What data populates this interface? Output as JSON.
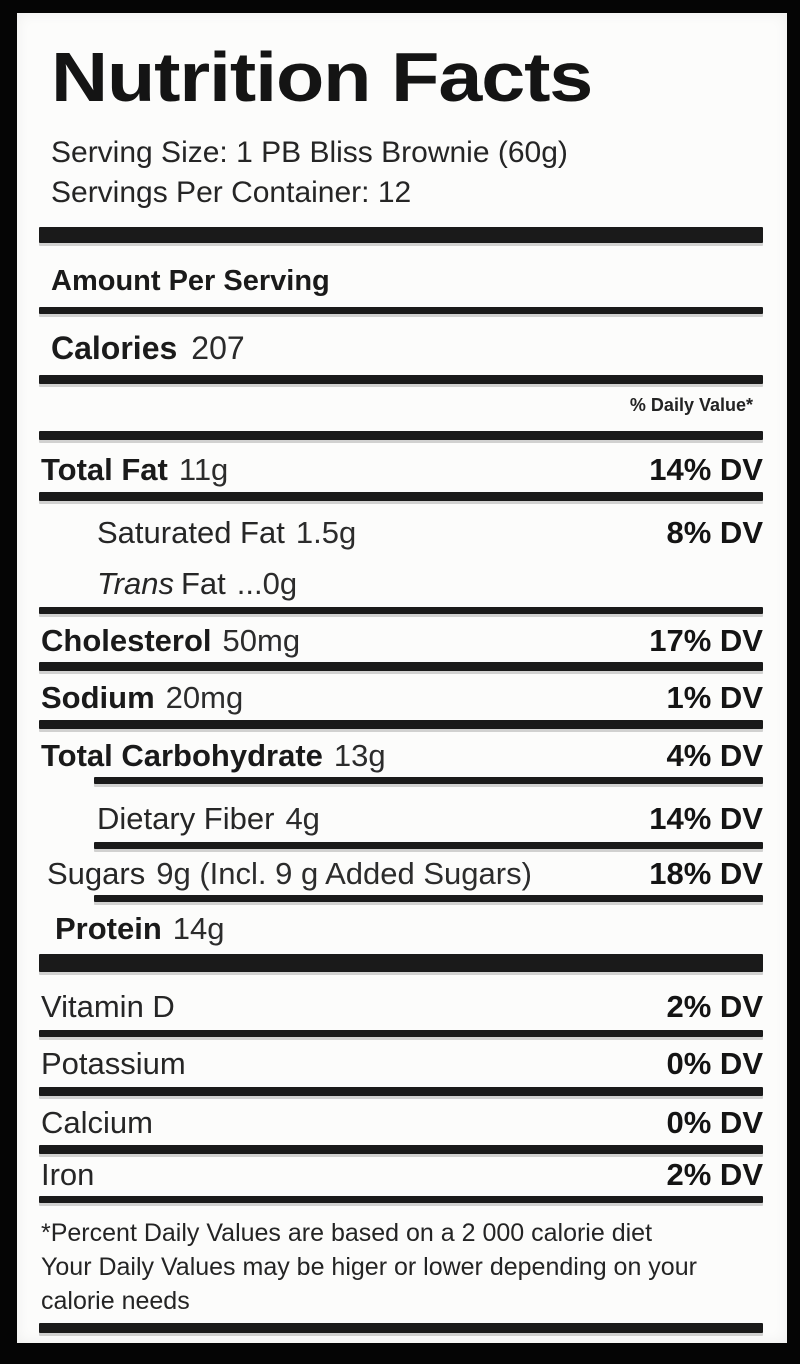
{
  "label": {
    "title": "Nutrition Facts",
    "serving": {
      "size": "Serving Size: 1 PB Bliss Brownie (60g)",
      "per_container": "Servings Per Container: 12"
    },
    "section": {
      "amount_per_serving": "Amount Per Serving",
      "calories_label": "Calories",
      "calories_value": "207",
      "daily_value_header": "% Daily Value*"
    },
    "nutrients": [
      {
        "name": "Total Fat",
        "amount": "11g",
        "dv": "14% DV"
      },
      {
        "name": "Saturated Fat",
        "amount": "1.5g",
        "dv": "8% DV"
      },
      {
        "name_italic": "Trans",
        "name_rest": "Fat",
        "amount": "...0g",
        "dv": ""
      },
      {
        "name": "Cholesterol",
        "amount": "50mg",
        "dv": "17% DV"
      },
      {
        "name": "Sodium",
        "amount": "20mg",
        "dv": "1% DV"
      },
      {
        "name": "Total Carbohydrate",
        "amount": "13g",
        "dv": "4% DV"
      },
      {
        "name": "Dietary Fiber",
        "amount": "4g",
        "dv": "14% DV"
      },
      {
        "name": "Sugars",
        "amount": "9g (Incl. 9 g Added Sugars)",
        "dv": "18% DV"
      },
      {
        "name": "Protein",
        "amount": "14g",
        "dv": ""
      }
    ],
    "micronutrients": [
      {
        "name": "Vitamin D",
        "dv": "2% DV"
      },
      {
        "name": "Potassium",
        "dv": "0% DV"
      },
      {
        "name": "Calcium",
        "dv": "0% DV"
      },
      {
        "name": "Iron",
        "dv": "2% DV"
      }
    ],
    "footnote": {
      "line1": "*Percent Daily Values are based on a 2 000 calorie diet",
      "line2": "Your Daily Values may be higer or lower depending on your",
      "line3": "calorie needs"
    },
    "colors": {
      "text": "#1b1b1b",
      "separator": "#1a1a1a",
      "background": "#fcfcfb",
      "frame": "#050505"
    }
  }
}
